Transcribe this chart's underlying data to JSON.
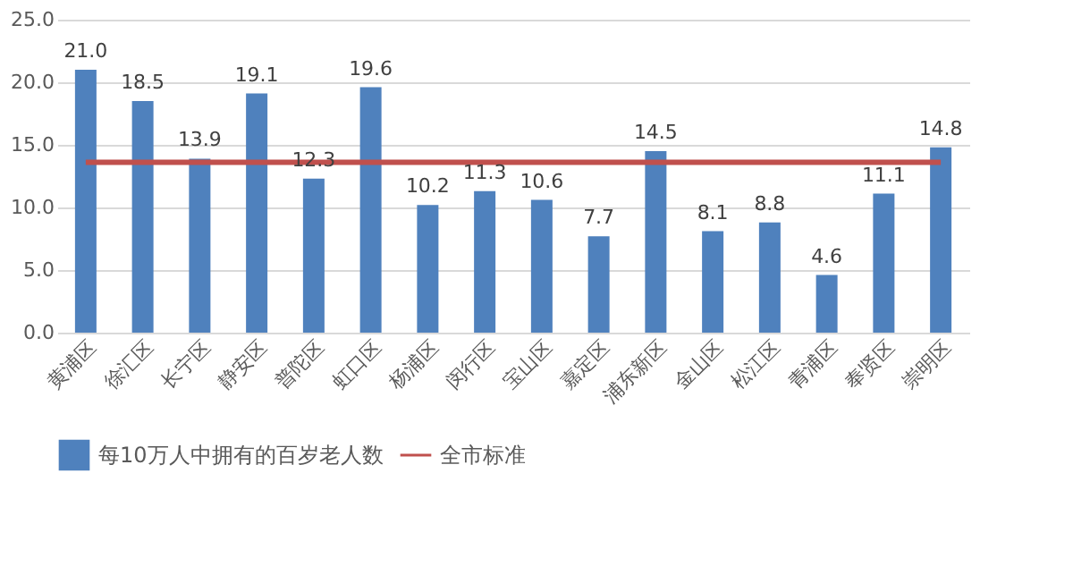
{
  "chart_data": {
    "type": "bar",
    "categories": [
      "黄浦区",
      "徐汇区",
      "长宁区",
      "静安区",
      "普陀区",
      "虹口区",
      "杨浦区",
      "闵行区",
      "宝山区",
      "嘉定区",
      "浦东新区",
      "金山区",
      "松江区",
      "青浦区",
      "奉贤区",
      "崇明区"
    ],
    "series": [
      {
        "name": "每10万人中拥有的百岁老人数",
        "color": "#4f81bd",
        "values": [
          21.0,
          18.5,
          13.9,
          19.1,
          12.3,
          19.6,
          10.2,
          11.3,
          10.6,
          7.7,
          14.5,
          8.1,
          8.8,
          4.6,
          11.1,
          14.8
        ],
        "value_labels": [
          "21.0",
          "18.5",
          "13.9",
          "19.1",
          "12.3",
          "19.6",
          "10.2",
          "11.3",
          "10.6",
          "7.7",
          "14.5",
          "8.1",
          "8.8",
          "4.6",
          "11.1",
          "14.8"
        ]
      },
      {
        "name": "全市标准",
        "type": "line",
        "color": "#c0504d",
        "values": [
          13.6,
          13.6,
          13.6,
          13.6,
          13.6,
          13.6,
          13.6,
          13.6,
          13.6,
          13.6,
          13.6,
          13.6,
          13.6,
          13.6,
          13.6,
          13.6
        ]
      }
    ],
    "ylim": [
      0,
      25
    ],
    "yticks": [
      {
        "value": 0,
        "label": "0.0"
      },
      {
        "value": 5,
        "label": "5.0"
      },
      {
        "value": 10,
        "label": "10.0"
      },
      {
        "value": 15,
        "label": "15.0"
      },
      {
        "value": 20,
        "label": "20.0"
      },
      {
        "value": 25,
        "label": "25.0"
      }
    ],
    "grid": "y",
    "legend": "bottom"
  }
}
